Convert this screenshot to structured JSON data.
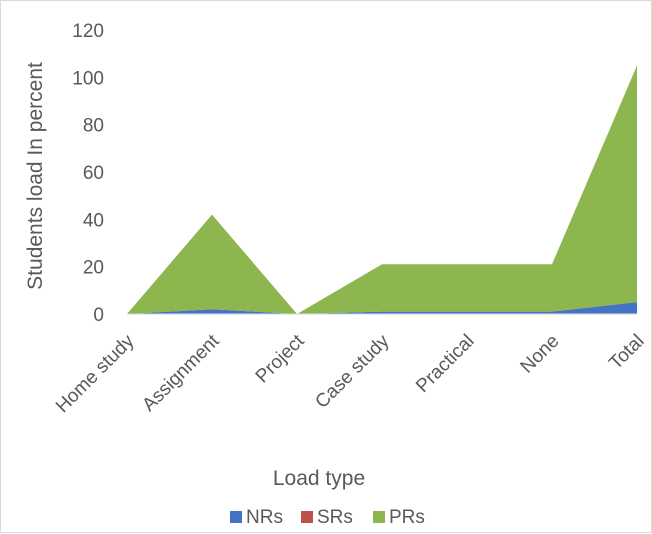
{
  "chart_data": {
    "type": "area",
    "stacked": true,
    "categories": [
      "Home study",
      "Assignment",
      "Project",
      "Case study",
      "Practical",
      "None",
      "Total"
    ],
    "series": [
      {
        "name": "NRs",
        "color": "#4472c4",
        "values": [
          0,
          2,
          0,
          1,
          1,
          1,
          5
        ]
      },
      {
        "name": "SRs",
        "color": "#c0504d",
        "values": [
          0,
          0,
          0,
          0,
          0,
          0,
          0
        ]
      },
      {
        "name": "PRs",
        "color": "#8db64f",
        "values": [
          0,
          40,
          0,
          20,
          20,
          20,
          100
        ]
      }
    ],
    "xlabel": "Load type",
    "ylabel": "Students load In percent",
    "ylim": [
      0,
      120
    ],
    "yticks": [
      0,
      20,
      40,
      60,
      80,
      100,
      120
    ],
    "grid": false,
    "legend_position": "bottom"
  }
}
